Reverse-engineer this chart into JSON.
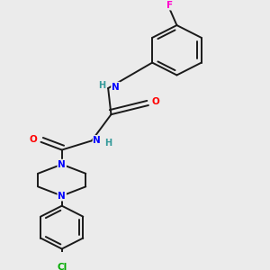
{
  "background_color": "#ebebeb",
  "bond_color": "#1a1a1a",
  "atom_colors": {
    "N": "#0000ff",
    "O": "#ff0000",
    "F": "#ff00cc",
    "Cl": "#00aa00",
    "H": "#339999",
    "C": "#1a1a1a"
  },
  "figsize": [
    3.0,
    3.0
  ],
  "dpi": 100,
  "lw": 1.4,
  "fontsize": 7.5
}
